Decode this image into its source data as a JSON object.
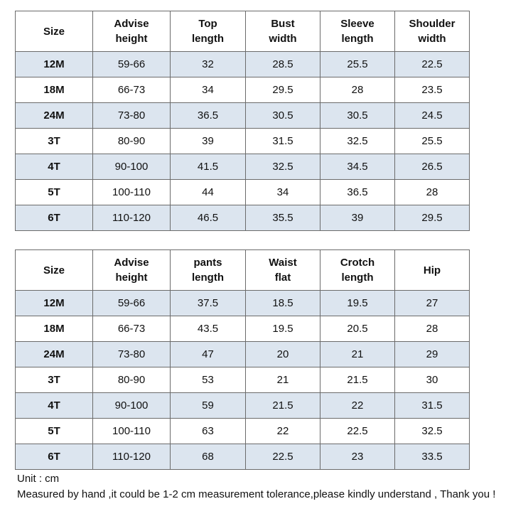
{
  "top_table": {
    "headers": [
      "Size",
      "Advise\nheight",
      "Top\nlength",
      "Bust\nwidth",
      "Sleeve\nlength",
      "Shoulder\nwidth"
    ],
    "rows": [
      [
        "12M",
        "59-66",
        "32",
        "28.5",
        "25.5",
        "22.5"
      ],
      [
        "18M",
        "66-73",
        "34",
        "29.5",
        "28",
        "23.5"
      ],
      [
        "24M",
        "73-80",
        "36.5",
        "30.5",
        "30.5",
        "24.5"
      ],
      [
        "3T",
        "80-90",
        "39",
        "31.5",
        "32.5",
        "25.5"
      ],
      [
        "4T",
        "90-100",
        "41.5",
        "32.5",
        "34.5",
        "26.5"
      ],
      [
        "5T",
        "100-110",
        "44",
        "34",
        "36.5",
        "28"
      ],
      [
        "6T",
        "110-120",
        "46.5",
        "35.5",
        "39",
        "29.5"
      ]
    ]
  },
  "bottom_table": {
    "headers": [
      "Size",
      "Advise\nheight",
      "pants\nlength",
      "Waist\nflat",
      "Crotch\nlength",
      "Hip"
    ],
    "rows": [
      [
        "12M",
        "59-66",
        "37.5",
        "18.5",
        "19.5",
        "27"
      ],
      [
        "18M",
        "66-73",
        "43.5",
        "19.5",
        "20.5",
        "28"
      ],
      [
        "24M",
        "73-80",
        "47",
        "20",
        "21",
        "29"
      ],
      [
        "3T",
        "80-90",
        "53",
        "21",
        "21.5",
        "30"
      ],
      [
        "4T",
        "90-100",
        "59",
        "21.5",
        "22",
        "31.5"
      ],
      [
        "5T",
        "100-110",
        "63",
        "22",
        "22.5",
        "32.5"
      ],
      [
        "6T",
        "110-120",
        "68",
        "22.5",
        "23",
        "33.5"
      ]
    ]
  },
  "notes": {
    "unit": "Unit : cm",
    "measure": "Measured by hand ,it could be 1-2 cm measurement tolerance,please kindly understand , Thank you !"
  },
  "colors": {
    "shaded_row": "#dce5ef",
    "border": "#6b6b6b"
  }
}
